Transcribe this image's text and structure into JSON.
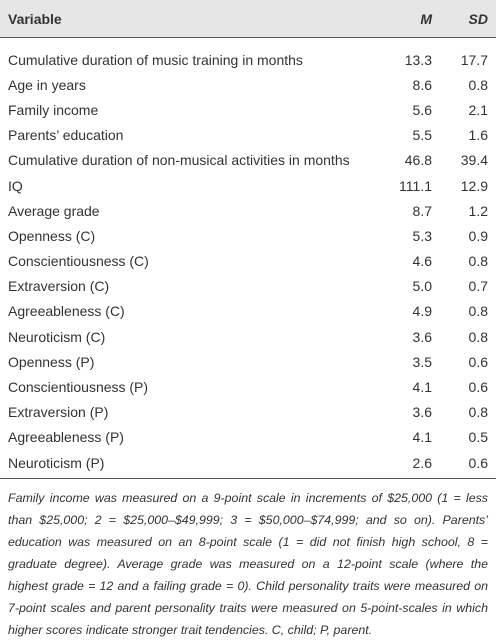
{
  "table": {
    "header": [
      "Variable",
      "M",
      "SD"
    ],
    "rows": [
      [
        "Cumulative duration of music training in months",
        "13.3",
        "17.7"
      ],
      [
        "Age in years",
        "8.6",
        "0.8"
      ],
      [
        "Family income",
        "5.6",
        "2.1"
      ],
      [
        "Parents’ education",
        "5.5",
        "1.6"
      ],
      [
        "Cumulative duration of non-musical activities in months",
        "46.8",
        "39.4"
      ],
      [
        "IQ",
        "111.1",
        "12.9"
      ],
      [
        "Average grade",
        "8.7",
        "1.2"
      ],
      [
        "Openness (C)",
        "5.3",
        "0.9"
      ],
      [
        "Conscientiousness (C)",
        "4.6",
        "0.8"
      ],
      [
        "Extraversion (C)",
        "5.0",
        "0.7"
      ],
      [
        "Agreeableness (C)",
        "4.9",
        "0.8"
      ],
      [
        "Neuroticism (C)",
        "3.6",
        "0.8"
      ],
      [
        "Openness (P)",
        "3.5",
        "0.6"
      ],
      [
        "Conscientiousness (P)",
        "4.1",
        "0.6"
      ],
      [
        "Extraversion (P)",
        "3.6",
        "0.8"
      ],
      [
        "Agreeableness (P)",
        "4.1",
        "0.5"
      ],
      [
        "Neuroticism (P)",
        "2.6",
        "0.6"
      ]
    ],
    "footnote": "Family income was measured on a 9-point scale in increments of $25,000 (1 = less than $25,000; 2 = $25,000–$49,999; 3 = $50,000–$74,999; and so on). Parents’ education was measured on an 8-point scale (1 = did not finish high school, 8 = graduate degree). Average grade was measured on a 12-point scale (where the highest grade = 12 and a failing grade = 0). Child personality traits were measured on 7-point scales and parent personality traits were measured on 5-point-scales in which higher scores indicate stronger trait tendencies. C, child; P, parent."
  }
}
